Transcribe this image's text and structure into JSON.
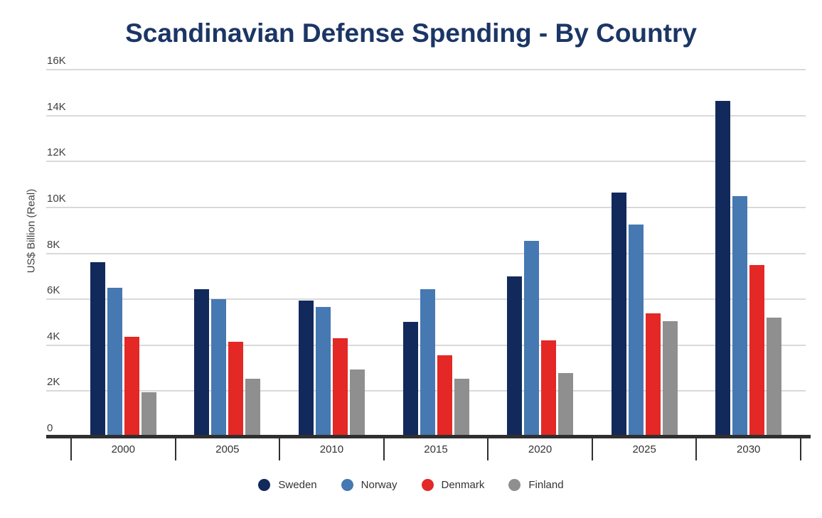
{
  "title": "Scandinavian Defense Spending - By Country",
  "colors": {
    "title_text": "#1b3665",
    "gridline": "#d9d9d9",
    "axis_line": "#2f2f2f",
    "tick_label": "#404040",
    "category_label": "#333333",
    "sweden": "#12295b",
    "norway": "#4678b2",
    "denmark": "#e32826",
    "finland": "#8f8f8f"
  },
  "chart_data": {
    "type": "bar",
    "title": "Scandinavian Defense Spending - By Country",
    "xlabel": "",
    "ylabel": "US$ Billion (Real)",
    "ylim": [
      0,
      16000
    ],
    "grid": true,
    "legend_position": "bottom",
    "yticks": [
      {
        "label": "16K",
        "value": 16000
      },
      {
        "label": "14K",
        "value": 14000
      },
      {
        "label": "12K",
        "value": 12000
      },
      {
        "label": "10K",
        "value": 10000
      },
      {
        "label": "8K",
        "value": 8000
      },
      {
        "label": "6K",
        "value": 6000
      },
      {
        "label": "4K",
        "value": 4000
      },
      {
        "label": "2K",
        "value": 2000
      },
      {
        "label": "0",
        "value": 0
      }
    ],
    "categories": [
      "2000",
      "2005",
      "2010",
      "2015",
      "2020",
      "2025",
      "2030"
    ],
    "series": [
      {
        "name": "Sweden",
        "color": "#12295b",
        "values": [
          7600,
          6450,
          5950,
          5000,
          7000,
          10650,
          14650
        ]
      },
      {
        "name": "Norway",
        "color": "#4678b2",
        "values": [
          6500,
          6000,
          5650,
          6450,
          8550,
          9250,
          10500
        ]
      },
      {
        "name": "Denmark",
        "color": "#e32826",
        "values": [
          4350,
          4150,
          4300,
          3550,
          4200,
          5400,
          7500
        ]
      },
      {
        "name": "Finland",
        "color": "#8f8f8f",
        "values": [
          1950,
          2550,
          2950,
          2550,
          2800,
          5050,
          5200
        ]
      }
    ]
  }
}
